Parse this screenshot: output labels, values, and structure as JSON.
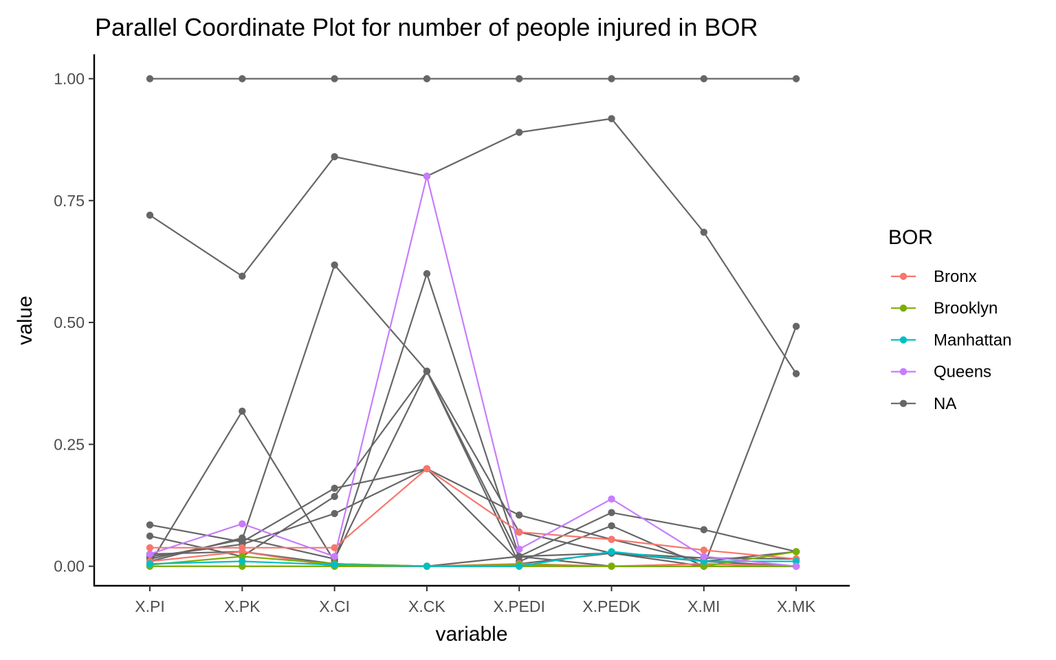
{
  "chart_data": {
    "type": "line",
    "title": "Parallel Coordinate Plot for number of people injured in BOR",
    "xlabel": "variable",
    "ylabel": "value",
    "categories": [
      "X.PI",
      "X.PK",
      "X.CI",
      "X.CK",
      "X.PEDI",
      "X.PEDK",
      "X.MI",
      "X.MK"
    ],
    "ylim": [
      -0.04,
      1.05
    ],
    "yticks": [
      0,
      0.25,
      0.5,
      0.75,
      1
    ],
    "ytick_labels": [
      "0.00",
      "0.25",
      "0.50",
      "0.75",
      "1.00"
    ],
    "grid": false,
    "legend": {
      "title": "BOR",
      "placement": "right",
      "entries": [
        {
          "label": "Bronx",
          "color": "#F8766D"
        },
        {
          "label": "Brooklyn",
          "color": "#7CAE00"
        },
        {
          "label": "Manhattan",
          "color": "#00BFC4"
        },
        {
          "label": "Queens",
          "color": "#C77CFF"
        },
        {
          "label": "NA",
          "color": "#666666"
        }
      ]
    },
    "series": [
      {
        "group": "NA",
        "values": [
          1,
          1,
          1,
          1,
          1,
          1,
          1,
          1
        ]
      },
      {
        "group": "NA",
        "values": [
          0.72,
          0.595,
          0.84,
          0.8,
          0.89,
          0.918,
          0.685,
          0.395
        ]
      },
      {
        "group": "NA",
        "values": [
          0.015,
          0.055,
          0.618,
          0.4,
          0.07,
          0.027,
          0.017,
          0.015
        ]
      },
      {
        "group": "NA",
        "values": [
          0.005,
          0.318,
          0.01,
          0.6,
          0.02,
          0.11,
          0.075,
          0.03
        ]
      },
      {
        "group": "NA",
        "values": [
          0.085,
          0.05,
          0.16,
          0.2,
          0.105,
          0.055,
          0.01,
          0.0
        ]
      },
      {
        "group": "NA",
        "values": [
          0.062,
          0.02,
          0.143,
          0.4,
          0.02,
          0.0,
          0.0,
          0.0
        ]
      },
      {
        "group": "NA",
        "values": [
          0.02,
          0.045,
          0.108,
          0.2,
          0.01,
          0.083,
          0.0,
          0.492
        ]
      },
      {
        "group": "NA",
        "values": [
          0.01,
          0.058,
          0.015,
          0.4,
          0.005,
          0.027,
          0.01,
          0.03
        ]
      },
      {
        "group": "NA",
        "values": [
          0.025,
          0.03,
          0.005,
          0.0,
          0.02,
          0.027,
          0.0,
          0.0
        ]
      },
      {
        "group": "NA",
        "values": [
          0.0,
          0.0,
          0.0,
          0.0,
          0.0,
          0.0,
          0.0,
          0.0
        ]
      },
      {
        "group": "Bronx",
        "values": [
          0.038,
          0.038,
          0.038,
          0.2,
          0.07,
          0.055,
          0.033,
          0.015
        ]
      },
      {
        "group": "Bronx",
        "values": [
          0.01,
          0.03,
          0.0,
          0.0,
          0.005,
          0.0,
          0.005,
          0.0
        ]
      },
      {
        "group": "Brooklyn",
        "values": [
          0.003,
          0.02,
          0.005,
          0.0,
          0.003,
          0.0,
          0.0,
          0.03
        ]
      },
      {
        "group": "Brooklyn",
        "values": [
          0.0,
          0.0,
          0.0,
          0.0,
          0.0,
          0.0,
          0.0,
          0.0
        ]
      },
      {
        "group": "Manhattan",
        "values": [
          0.005,
          0.01,
          0.003,
          0.0,
          0.0,
          0.03,
          0.01,
          0.01
        ]
      },
      {
        "group": "Queens",
        "values": [
          0.025,
          0.087,
          0.02,
          0.8,
          0.035,
          0.138,
          0.02,
          0.0
        ]
      }
    ]
  }
}
